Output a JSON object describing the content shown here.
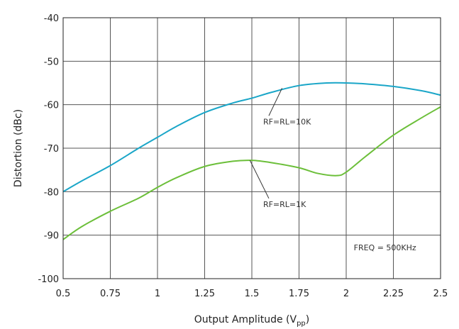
{
  "chart_data": {
    "type": "line",
    "xlabel": "Output Amplitude (V",
    "xlabel_sub": "pp",
    "xlabel_close": ")",
    "ylabel": "Distortion (dBc)",
    "xlim": [
      0.5,
      2.5
    ],
    "ylim": [
      -100,
      -40
    ],
    "xticks": [
      0.5,
      0.75,
      1,
      1.25,
      1.5,
      1.75,
      2,
      2.25,
      2.5
    ],
    "xtick_labels": [
      "0.5",
      "0.75",
      "1",
      "1.25",
      "1.5",
      "1.75",
      "2",
      "2.25",
      "2.5"
    ],
    "yticks": [
      -100,
      -90,
      -80,
      -70,
      -60,
      -50,
      -40
    ],
    "ytick_labels": [
      "-100",
      "-90",
      "-80",
      "-70",
      "-60",
      "-50",
      "-40"
    ],
    "grid": true,
    "series": [
      {
        "name": "RF=RL=10K",
        "color": "#1aa6c8",
        "x": [
          0.5,
          0.6,
          0.75,
          0.9,
          1.0,
          1.1,
          1.25,
          1.4,
          1.5,
          1.6,
          1.75,
          1.9,
          2.0,
          2.1,
          2.25,
          2.4,
          2.5
        ],
        "y": [
          -80.0,
          -77.5,
          -74.0,
          -70.0,
          -67.5,
          -65.0,
          -61.8,
          -59.6,
          -58.5,
          -57.2,
          -55.6,
          -55.0,
          -55.0,
          -55.2,
          -55.8,
          -56.8,
          -57.8
        ]
      },
      {
        "name": "RF=RL=1K",
        "color": "#6cbf3a",
        "x": [
          0.5,
          0.6,
          0.75,
          0.9,
          1.0,
          1.1,
          1.25,
          1.4,
          1.5,
          1.6,
          1.75,
          1.85,
          1.95,
          2.0,
          2.1,
          2.25,
          2.4,
          2.5
        ],
        "y": [
          -91.0,
          -88.0,
          -84.5,
          -81.5,
          -79.0,
          -76.8,
          -74.2,
          -73.0,
          -72.8,
          -73.3,
          -74.5,
          -75.8,
          -76.3,
          -75.5,
          -72.0,
          -67.0,
          -63.0,
          -60.5
        ]
      }
    ],
    "annotations": [
      {
        "text": "RF=RL=10K",
        "label_x": 1.56,
        "label_y": -64.5,
        "arrow_to_x": 1.66,
        "arrow_to_y": -56.2
      },
      {
        "text": "RF=RL=1K",
        "label_x": 1.56,
        "label_y": -83.5,
        "arrow_to_x": 1.49,
        "arrow_to_y": -72.8
      },
      {
        "text": "FREQ = 500KHz",
        "label_x": 2.04,
        "label_y": -93.5
      }
    ]
  }
}
